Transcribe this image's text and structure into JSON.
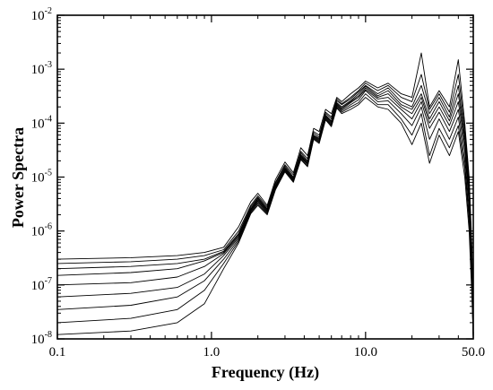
{
  "chart_data": {
    "type": "line",
    "title": "",
    "xlabel": "Frequency (Hz)",
    "ylabel": "Power  Spectra",
    "x_scale": "log",
    "y_scale": "log",
    "xlim": [
      0.1,
      50.0
    ],
    "ylim": [
      1e-08,
      0.01
    ],
    "x_ticks": [
      {
        "value": 0.1,
        "label": "0.1"
      },
      {
        "value": 1.0,
        "label": "1.0"
      },
      {
        "value": 10.0,
        "label": "10.0"
      },
      {
        "value": 50.0,
        "label": "50.0"
      }
    ],
    "y_ticks": [
      {
        "value": 1e-08,
        "base": "10",
        "exp": "-8"
      },
      {
        "value": 1e-07,
        "base": "10",
        "exp": "-7"
      },
      {
        "value": 1e-06,
        "base": "10",
        "exp": "-6"
      },
      {
        "value": 1e-05,
        "base": "10",
        "exp": "-5"
      },
      {
        "value": 0.0001,
        "base": "10",
        "exp": "-4"
      },
      {
        "value": 0.001,
        "base": "10",
        "exp": "-3"
      },
      {
        "value": 0.01,
        "base": "10",
        "exp": "-2"
      }
    ],
    "grid": false,
    "legend": "none",
    "line_color": "#000000",
    "shared_x": [
      0.1,
      0.3,
      0.6,
      0.9,
      1.2,
      1.5,
      1.8,
      2.0,
      2.3,
      2.6,
      3.0,
      3.4,
      3.8,
      4.2,
      4.6,
      5.0,
      5.5,
      6.0,
      6.5,
      7.0,
      8.0,
      9.0,
      10.0,
      12.0,
      14.0,
      17.0,
      20.0,
      23.0,
      26.0,
      30.0,
      35.0,
      40.0,
      44.0,
      47.0,
      49.0,
      50.0
    ],
    "series": [
      {
        "values": [
          3e-07,
          3.2e-07,
          3.5e-07,
          4e-07,
          5e-07,
          1.2e-06,
          3.5e-06,
          5e-06,
          3e-06,
          9e-06,
          1.9e-05,
          1.2e-05,
          3.5e-05,
          2.5e-05,
          8e-05,
          7e-05,
          0.00018,
          0.00015,
          0.0003,
          0.00025,
          0.00035,
          0.00045,
          0.0006,
          0.00045,
          0.00055,
          0.00035,
          0.0003,
          0.002,
          0.0002,
          0.0004,
          0.0002,
          0.0015,
          0.0001,
          1e-05,
          5e-07,
          1.2e-08
        ]
      },
      {
        "values": [
          2.5e-07,
          2.7e-07,
          3e-07,
          3.5e-07,
          4.5e-07,
          1e-06,
          3e-06,
          4.5e-06,
          2.8e-06,
          8e-06,
          1.7e-05,
          1.1e-05,
          3e-05,
          2.2e-05,
          7e-05,
          6e-05,
          0.00016,
          0.00013,
          0.00028,
          0.00023,
          0.0003,
          0.0004,
          0.00055,
          0.0004,
          0.0005,
          0.0003,
          0.00025,
          0.0008,
          0.00018,
          0.00035,
          0.00016,
          0.0008,
          8e-05,
          8e-06,
          4e-07,
          1.1e-08
        ]
      },
      {
        "values": [
          2e-07,
          2.2e-07,
          2.5e-07,
          3e-07,
          4.2e-07,
          9e-07,
          2.8e-06,
          4.2e-06,
          2.6e-06,
          7.5e-06,
          1.6e-05,
          1e-05,
          2.8e-05,
          2e-05,
          6.5e-05,
          5.5e-05,
          0.00015,
          0.00012,
          0.00026,
          0.00022,
          0.00028,
          0.00038,
          0.0005,
          0.00035,
          0.00045,
          0.00025,
          0.0002,
          0.0005,
          0.00015,
          0.0003,
          0.00013,
          0.0005,
          6e-05,
          6e-06,
          3e-07,
          1e-08
        ]
      },
      {
        "values": [
          1.5e-07,
          1.7e-07,
          2e-07,
          2.8e-07,
          4e-07,
          8.5e-07,
          2.6e-06,
          4e-06,
          2.5e-06,
          7e-06,
          1.5e-05,
          9.5e-06,
          2.6e-05,
          1.9e-05,
          6e-05,
          5.2e-05,
          0.00014,
          0.00011,
          0.00024,
          0.0002,
          0.00026,
          0.00035,
          0.00048,
          0.00032,
          0.0004,
          0.00022,
          0.00018,
          0.00035,
          0.00012,
          0.00025,
          0.00011,
          0.00035,
          5e-05,
          5e-06,
          2.5e-07,
          1e-08
        ]
      },
      {
        "values": [
          1e-07,
          1.1e-07,
          1.4e-07,
          2.2e-07,
          3.8e-07,
          8e-07,
          2.5e-06,
          3.8e-06,
          2.4e-06,
          6.8e-06,
          1.45e-05,
          9.2e-06,
          2.5e-05,
          1.8e-05,
          5.8e-05,
          5e-05,
          0.000135,
          0.000105,
          0.00023,
          0.00019,
          0.00025,
          0.00032,
          0.00045,
          0.0003,
          0.00035,
          0.0002,
          0.00015,
          0.0003,
          0.0001,
          0.0002,
          9e-05,
          0.00025,
          4e-05,
          4e-06,
          2e-07,
          1e-08
        ]
      },
      {
        "values": [
          6e-08,
          7e-08,
          9e-08,
          1.6e-07,
          3.5e-07,
          7.5e-07,
          2.4e-06,
          3.6e-06,
          2.3e-06,
          6.5e-06,
          1.4e-05,
          9e-06,
          2.4e-05,
          1.75e-05,
          5.6e-05,
          4.8e-05,
          0.00013,
          0.0001,
          0.00022,
          0.00018,
          0.00024,
          0.0003,
          0.00042,
          0.00028,
          0.0003,
          0.00018,
          0.00012,
          0.00025,
          8e-05,
          0.00016,
          7e-05,
          0.00018,
          3e-05,
          3e-06,
          1.5e-07,
          1e-08
        ]
      },
      {
        "values": [
          3.5e-08,
          4.2e-08,
          6e-08,
          1.2e-07,
          3e-07,
          7e-07,
          2.3e-06,
          3.4e-06,
          2.2e-06,
          6.2e-06,
          1.35e-05,
          8.6e-06,
          2.3e-05,
          1.7e-05,
          5.4e-05,
          4.6e-05,
          0.000125,
          9.5e-05,
          0.00021,
          0.00017,
          0.00022,
          0.00027,
          0.0004,
          0.00025,
          0.00026,
          0.00015,
          9e-05,
          0.0002,
          5e-05,
          0.00012,
          5e-05,
          0.00013,
          2e-05,
          2e-06,
          1e-07,
          1e-08
        ]
      },
      {
        "values": [
          2e-08,
          2.4e-08,
          3.5e-08,
          8e-08,
          2.5e-07,
          6.5e-07,
          2.2e-06,
          3.2e-06,
          2.1e-06,
          6e-06,
          1.3e-05,
          8.3e-06,
          2.2e-05,
          1.6e-05,
          5.2e-05,
          4.4e-05,
          0.00012,
          9e-05,
          0.0002,
          0.00016,
          0.0002,
          0.00024,
          0.00035,
          0.00022,
          0.00022,
          0.00012,
          6e-05,
          0.00015,
          2.5e-05,
          8e-05,
          3.5e-05,
          9e-05,
          1.5e-05,
          1.5e-06,
          8e-08,
          1e-08
        ]
      },
      {
        "values": [
          1.2e-08,
          1.4e-08,
          2e-08,
          4.5e-08,
          2e-07,
          6e-07,
          2.1e-06,
          3e-06,
          2e-06,
          5.8e-06,
          1.25e-05,
          8e-06,
          2.1e-05,
          1.55e-05,
          5e-05,
          4.2e-05,
          0.000115,
          8.6e-05,
          0.00019,
          0.00015,
          0.00018,
          0.00022,
          0.0003,
          0.0002,
          0.00018,
          0.0001,
          4e-05,
          0.0001,
          1.8e-05,
          6e-05,
          2.5e-05,
          7e-05,
          1e-05,
          1e-06,
          6e-08,
          1e-08
        ]
      }
    ]
  }
}
